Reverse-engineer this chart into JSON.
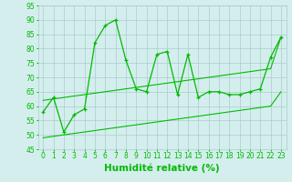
{
  "x": [
    0,
    1,
    2,
    3,
    4,
    5,
    6,
    7,
    8,
    9,
    10,
    11,
    12,
    13,
    14,
    15,
    16,
    17,
    18,
    19,
    20,
    21,
    22,
    23
  ],
  "main_line": [
    58,
    63,
    51,
    57,
    59,
    82,
    88,
    90,
    76,
    66,
    65,
    78,
    79,
    64,
    78,
    63,
    65,
    65,
    64,
    64,
    65,
    66,
    77,
    84
  ],
  "regression_upper": [
    62,
    62.5,
    63,
    63.5,
    64,
    64.5,
    65,
    65.5,
    66,
    66.5,
    67,
    67.5,
    68,
    68.5,
    69,
    69.5,
    70,
    70.5,
    71,
    71.5,
    72,
    72.5,
    73,
    84
  ],
  "regression_lower": [
    49,
    49.5,
    50,
    50.5,
    51,
    51.5,
    52,
    52.5,
    53,
    53.5,
    54,
    54.5,
    55,
    55.5,
    56,
    56.5,
    57,
    57.5,
    58,
    58.5,
    59,
    59.5,
    60,
    65
  ],
  "ylim": [
    45,
    95
  ],
  "xlim": [
    -0.5,
    23.5
  ],
  "yticks": [
    45,
    50,
    55,
    60,
    65,
    70,
    75,
    80,
    85,
    90,
    95
  ],
  "xticks": [
    0,
    1,
    2,
    3,
    4,
    5,
    6,
    7,
    8,
    9,
    10,
    11,
    12,
    13,
    14,
    15,
    16,
    17,
    18,
    19,
    20,
    21,
    22,
    23
  ],
  "xlabel": "Humidité relative (%)",
  "line_color": "#00bb00",
  "bg_color": "#d4eeee",
  "grid_color": "#aacccc",
  "tick_fontsize": 5.5,
  "xlabel_fontsize": 7.5
}
